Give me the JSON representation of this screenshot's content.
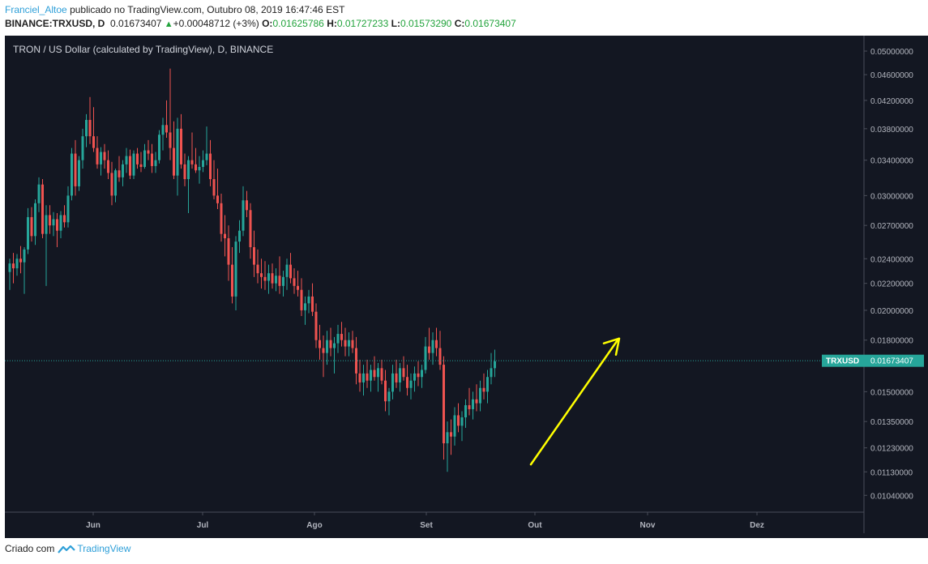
{
  "header": {
    "author": "Franciel_Altoe",
    "published_text": "publicado no TradingView.com, Outubro 08, 2019 16:47:46 EST",
    "symbol": "BINANCE:TRXUSD, D",
    "last_price": "0.01673407",
    "change": "+0.00048712 (+3%)",
    "o_label": "O:",
    "o_value": "0.01625786",
    "h_label": "H:",
    "h_value": "0.01727233",
    "l_label": "L:",
    "l_value": "0.01573290",
    "c_label": "C:",
    "c_value": "0.01673407"
  },
  "footer": {
    "created_with": "Criado com",
    "brand": "TradingView"
  },
  "colors": {
    "background": "#131722",
    "up": "#26a69a",
    "down": "#ef5350",
    "arrow": "#ffff00",
    "price_tag": "#26a69a",
    "axis_text": "#b2b5be"
  },
  "chart_data": {
    "type": "candlestick",
    "title": "TRON / US Dollar (calculated by TradingView), D, BINANCE",
    "y_scale": "log",
    "ylim": [
      0.0098,
      0.0528
    ],
    "y_ticks": [
      "0.05000000",
      "0.04600000",
      "0.04200000",
      "0.03800000",
      "0.03400000",
      "0.03000000",
      "0.02700000",
      "0.02400000",
      "0.02200000",
      "0.02000000",
      "0.01800000",
      "0.01500000",
      "0.01350000",
      "0.01230000",
      "0.01130000",
      "0.01040000"
    ],
    "x_ticks": [
      "Jun",
      "Jul",
      "Ago",
      "Set",
      "Out",
      "Nov",
      "Dez"
    ],
    "price_line": {
      "label": "TRXUSD",
      "value_text": "0.01673407",
      "value": 0.01673407
    },
    "annotation": {
      "type": "arrow",
      "from": [
        0.0116,
        1
      ],
      "to": [
        0.018,
        48
      ],
      "color": "#ffff00"
    },
    "candles": [
      [
        0.0229,
        0.024,
        0.0215,
        0.0236
      ],
      [
        0.0236,
        0.0245,
        0.022,
        0.0232
      ],
      [
        0.0232,
        0.0244,
        0.0226,
        0.024
      ],
      [
        0.024,
        0.0251,
        0.0228,
        0.0237
      ],
      [
        0.0237,
        0.025,
        0.0212,
        0.0248
      ],
      [
        0.0248,
        0.0287,
        0.0244,
        0.0278
      ],
      [
        0.0278,
        0.0288,
        0.0255,
        0.026
      ],
      [
        0.026,
        0.0296,
        0.0252,
        0.0292
      ],
      [
        0.0292,
        0.032,
        0.0283,
        0.0312
      ],
      [
        0.0312,
        0.0318,
        0.0258,
        0.0262
      ],
      [
        0.0262,
        0.029,
        0.0218,
        0.028
      ],
      [
        0.028,
        0.029,
        0.0262,
        0.027
      ],
      [
        0.027,
        0.0283,
        0.026,
        0.0276
      ],
      [
        0.0276,
        0.0282,
        0.025,
        0.0265
      ],
      [
        0.0265,
        0.0284,
        0.0258,
        0.028
      ],
      [
        0.028,
        0.029,
        0.0268,
        0.0273
      ],
      [
        0.0273,
        0.031,
        0.0268,
        0.03
      ],
      [
        0.03,
        0.0355,
        0.0295,
        0.0348
      ],
      [
        0.0348,
        0.0365,
        0.03,
        0.031
      ],
      [
        0.031,
        0.0345,
        0.0305,
        0.034
      ],
      [
        0.034,
        0.038,
        0.033,
        0.037
      ],
      [
        0.037,
        0.04,
        0.0356,
        0.0392
      ],
      [
        0.0392,
        0.0425,
        0.036,
        0.037
      ],
      [
        0.037,
        0.041,
        0.035,
        0.0355
      ],
      [
        0.0355,
        0.037,
        0.033,
        0.0335
      ],
      [
        0.0335,
        0.0356,
        0.0322,
        0.035
      ],
      [
        0.035,
        0.036,
        0.033,
        0.034
      ],
      [
        0.034,
        0.0352,
        0.0318,
        0.0325
      ],
      [
        0.0325,
        0.0338,
        0.029,
        0.03
      ],
      [
        0.03,
        0.033,
        0.0293,
        0.0328
      ],
      [
        0.0328,
        0.0345,
        0.0315,
        0.032
      ],
      [
        0.032,
        0.034,
        0.031,
        0.0335
      ],
      [
        0.0335,
        0.0355,
        0.0325,
        0.0345
      ],
      [
        0.0345,
        0.0353,
        0.0318,
        0.0322
      ],
      [
        0.0322,
        0.0352,
        0.0318,
        0.0348
      ],
      [
        0.0348,
        0.0355,
        0.033,
        0.0335
      ],
      [
        0.0335,
        0.035,
        0.0326,
        0.0332
      ],
      [
        0.0332,
        0.036,
        0.033,
        0.0352
      ],
      [
        0.0352,
        0.0365,
        0.034,
        0.0348
      ],
      [
        0.0348,
        0.036,
        0.0325,
        0.0333
      ],
      [
        0.0333,
        0.035,
        0.0325,
        0.034
      ],
      [
        0.034,
        0.0378,
        0.0336,
        0.0372
      ],
      [
        0.0372,
        0.0395,
        0.0352,
        0.0385
      ],
      [
        0.0385,
        0.042,
        0.0368,
        0.0375
      ],
      [
        0.0375,
        0.047,
        0.034,
        0.0355
      ],
      [
        0.0355,
        0.039,
        0.0318,
        0.0322
      ],
      [
        0.0322,
        0.0395,
        0.03,
        0.038
      ],
      [
        0.038,
        0.04,
        0.033,
        0.0335
      ],
      [
        0.0335,
        0.0348,
        0.031,
        0.0318
      ],
      [
        0.0318,
        0.0345,
        0.0282,
        0.034
      ],
      [
        0.034,
        0.0375,
        0.033,
        0.0335
      ],
      [
        0.0335,
        0.0355,
        0.0325,
        0.0328
      ],
      [
        0.0328,
        0.0345,
        0.0313,
        0.0332
      ],
      [
        0.0332,
        0.0352,
        0.0326,
        0.034
      ],
      [
        0.034,
        0.0383,
        0.0334,
        0.0348
      ],
      [
        0.0348,
        0.0365,
        0.031,
        0.0318
      ],
      [
        0.0318,
        0.034,
        0.0296,
        0.03
      ],
      [
        0.03,
        0.033,
        0.0286,
        0.0292
      ],
      [
        0.0292,
        0.0302,
        0.0255,
        0.0262
      ],
      [
        0.0262,
        0.028,
        0.0242,
        0.0258
      ],
      [
        0.0258,
        0.027,
        0.0222,
        0.0235
      ],
      [
        0.0235,
        0.025,
        0.0205,
        0.021
      ],
      [
        0.021,
        0.026,
        0.02,
        0.0255
      ],
      [
        0.0255,
        0.0275,
        0.0245,
        0.0265
      ],
      [
        0.0265,
        0.031,
        0.026,
        0.0295
      ],
      [
        0.0295,
        0.0305,
        0.0278,
        0.0285
      ],
      [
        0.0285,
        0.0292,
        0.024,
        0.025
      ],
      [
        0.025,
        0.0265,
        0.0225,
        0.0235
      ],
      [
        0.0235,
        0.0248,
        0.022,
        0.0228
      ],
      [
        0.0228,
        0.024,
        0.0216,
        0.0225
      ],
      [
        0.0225,
        0.0238,
        0.0215,
        0.0222
      ],
      [
        0.0222,
        0.0235,
        0.0212,
        0.0228
      ],
      [
        0.0228,
        0.0236,
        0.0216,
        0.022
      ],
      [
        0.022,
        0.0232,
        0.0214,
        0.0226
      ],
      [
        0.0226,
        0.0242,
        0.0212,
        0.0218
      ],
      [
        0.0218,
        0.023,
        0.021,
        0.0225
      ],
      [
        0.0225,
        0.024,
        0.0215,
        0.0235
      ],
      [
        0.0235,
        0.0245,
        0.022,
        0.0224
      ],
      [
        0.0224,
        0.0232,
        0.0212,
        0.0218
      ],
      [
        0.0218,
        0.023,
        0.021,
        0.0215
      ],
      [
        0.0215,
        0.0224,
        0.0196,
        0.02
      ],
      [
        0.02,
        0.021,
        0.019,
        0.0205
      ],
      [
        0.0205,
        0.0215,
        0.0198,
        0.021
      ],
      [
        0.021,
        0.022,
        0.0196,
        0.0199
      ],
      [
        0.0199,
        0.0205,
        0.0175,
        0.018
      ],
      [
        0.018,
        0.019,
        0.0168,
        0.0175
      ],
      [
        0.0175,
        0.0183,
        0.0158,
        0.0172
      ],
      [
        0.0172,
        0.0186,
        0.0165,
        0.018
      ],
      [
        0.018,
        0.0188,
        0.017,
        0.0175
      ],
      [
        0.0175,
        0.0182,
        0.016,
        0.0178
      ],
      [
        0.0178,
        0.019,
        0.0172,
        0.0184
      ],
      [
        0.0184,
        0.0192,
        0.0176,
        0.018
      ],
      [
        0.018,
        0.0188,
        0.017,
        0.0176
      ],
      [
        0.0176,
        0.0185,
        0.017,
        0.018
      ],
      [
        0.018,
        0.0186,
        0.0172,
        0.0175
      ],
      [
        0.0175,
        0.0182,
        0.0154,
        0.016
      ],
      [
        0.016,
        0.0168,
        0.015,
        0.0155
      ],
      [
        0.0155,
        0.0165,
        0.0148,
        0.016
      ],
      [
        0.016,
        0.0168,
        0.0152,
        0.0156
      ],
      [
        0.0156,
        0.0165,
        0.015,
        0.0162
      ],
      [
        0.0162,
        0.017,
        0.0156,
        0.0158
      ],
      [
        0.0158,
        0.0166,
        0.015,
        0.0163
      ],
      [
        0.0163,
        0.0168,
        0.0154,
        0.0156
      ],
      [
        0.0156,
        0.0162,
        0.014,
        0.0145
      ],
      [
        0.0145,
        0.0152,
        0.0138,
        0.015
      ],
      [
        0.015,
        0.0165,
        0.0146,
        0.016
      ],
      [
        0.016,
        0.0168,
        0.0152,
        0.0155
      ],
      [
        0.0155,
        0.0166,
        0.015,
        0.0163
      ],
      [
        0.0163,
        0.017,
        0.0156,
        0.0158
      ],
      [
        0.0158,
        0.0165,
        0.0148,
        0.0152
      ],
      [
        0.0152,
        0.016,
        0.0146,
        0.0156
      ],
      [
        0.0156,
        0.0164,
        0.015,
        0.016
      ],
      [
        0.016,
        0.0167,
        0.0153,
        0.0158
      ],
      [
        0.0158,
        0.0165,
        0.0152,
        0.0162
      ],
      [
        0.0162,
        0.0182,
        0.016,
        0.0176
      ],
      [
        0.0176,
        0.0188,
        0.0168,
        0.0172
      ],
      [
        0.0172,
        0.0185,
        0.0165,
        0.018
      ],
      [
        0.018,
        0.0188,
        0.017,
        0.0175
      ],
      [
        0.0175,
        0.0186,
        0.0162,
        0.0165
      ],
      [
        0.0165,
        0.017,
        0.0118,
        0.0125
      ],
      [
        0.0125,
        0.0135,
        0.0113,
        0.013
      ],
      [
        0.013,
        0.0136,
        0.012,
        0.0128
      ],
      [
        0.0128,
        0.0142,
        0.0124,
        0.0138
      ],
      [
        0.0138,
        0.0144,
        0.013,
        0.0133
      ],
      [
        0.0133,
        0.014,
        0.0126,
        0.0137
      ],
      [
        0.0137,
        0.0146,
        0.0132,
        0.0143
      ],
      [
        0.0143,
        0.0152,
        0.0138,
        0.0141
      ],
      [
        0.0141,
        0.015,
        0.0136,
        0.0146
      ],
      [
        0.0146,
        0.0154,
        0.014,
        0.0144
      ],
      [
        0.0144,
        0.0156,
        0.014,
        0.0152
      ],
      [
        0.0152,
        0.016,
        0.0146,
        0.015
      ],
      [
        0.015,
        0.0162,
        0.0144,
        0.0158
      ],
      [
        0.0158,
        0.0172,
        0.0154,
        0.0163
      ],
      [
        0.0163,
        0.0174,
        0.0158,
        0.0167
      ]
    ]
  }
}
